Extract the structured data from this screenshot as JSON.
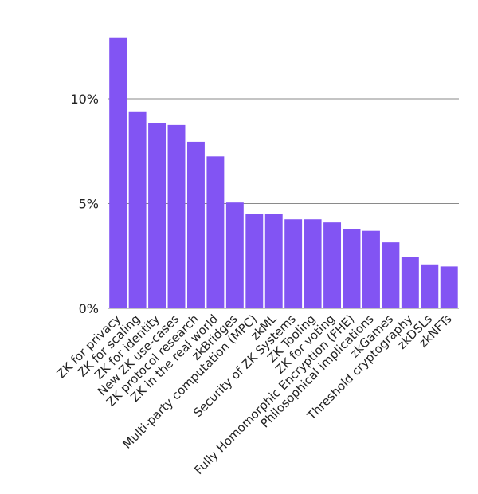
{
  "chart_data": {
    "type": "bar",
    "title": "",
    "xlabel": "",
    "ylabel": "",
    "ylim": [
      0,
      13
    ],
    "yticks": [
      {
        "value": 0,
        "label": "0%"
      },
      {
        "value": 5,
        "label": "5%"
      },
      {
        "value": 10,
        "label": "10%"
      }
    ],
    "grid": true,
    "bar_color": "#8254f3",
    "grid_color": "#8a8a8a",
    "categories": [
      "ZK for privacy",
      "ZK for scaling",
      "ZK for identity",
      "New ZK use-cases",
      "ZK protocol research",
      "ZK in the real world",
      "zkBridges",
      "Multi-party computation (MPC)",
      "zkML",
      "Security of ZK Systems",
      "ZK Tooling",
      "ZK for voting",
      "Fully Homomorphic Encryption (FHE)",
      "Philosophical implications",
      "zkGames",
      "Threshold cryptography",
      "zkDSLs",
      "zkNFTs"
    ],
    "values": [
      12.9,
      9.4,
      8.85,
      8.75,
      7.95,
      7.25,
      5.05,
      4.5,
      4.5,
      4.25,
      4.25,
      4.1,
      3.8,
      3.7,
      3.15,
      2.45,
      2.1,
      2.0
    ]
  }
}
